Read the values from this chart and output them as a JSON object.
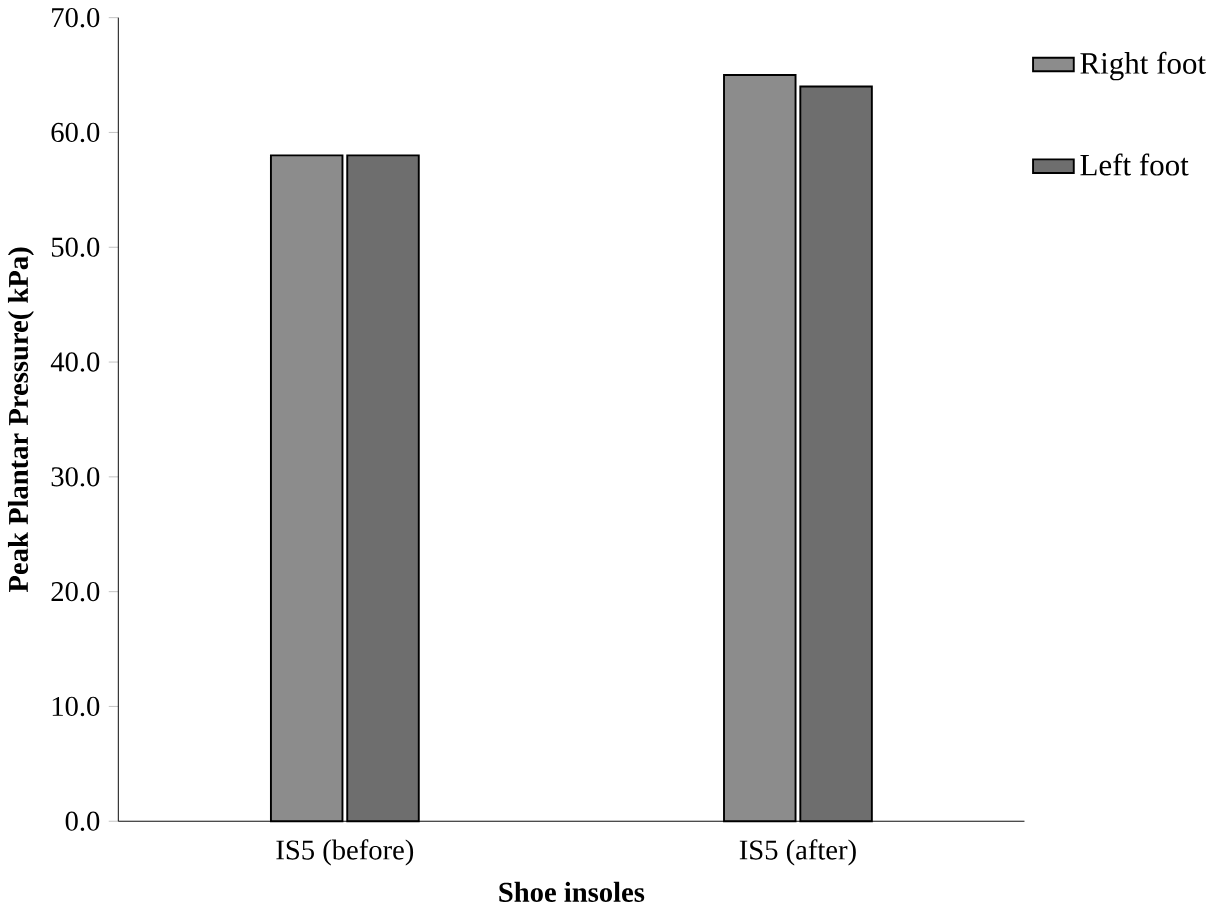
{
  "chart_data": {
    "type": "bar",
    "xlabel": "Shoe insoles",
    "ylabel": "Peak Plantar Pressure( kPa)",
    "categories": [
      "IS5 (before)",
      "IS5 (after)"
    ],
    "series": [
      {
        "name": "Right foot",
        "color": "#8c8c8c",
        "values": [
          58,
          65
        ]
      },
      {
        "name": "Left foot",
        "color": "#6e6e6e",
        "values": [
          58,
          64
        ]
      }
    ],
    "ylim": [
      0,
      70
    ],
    "yticks": [
      {
        "value": 0,
        "label": "0.0"
      },
      {
        "value": 10,
        "label": "10.0"
      },
      {
        "value": 20,
        "label": "20.0"
      },
      {
        "value": 30,
        "label": "30.0"
      },
      {
        "value": 40,
        "label": "40.0"
      },
      {
        "value": 50,
        "label": "50.0"
      },
      {
        "value": 60,
        "label": "60.0"
      },
      {
        "value": 70,
        "label": "70.0"
      }
    ],
    "grid": false,
    "legend": "top right"
  }
}
